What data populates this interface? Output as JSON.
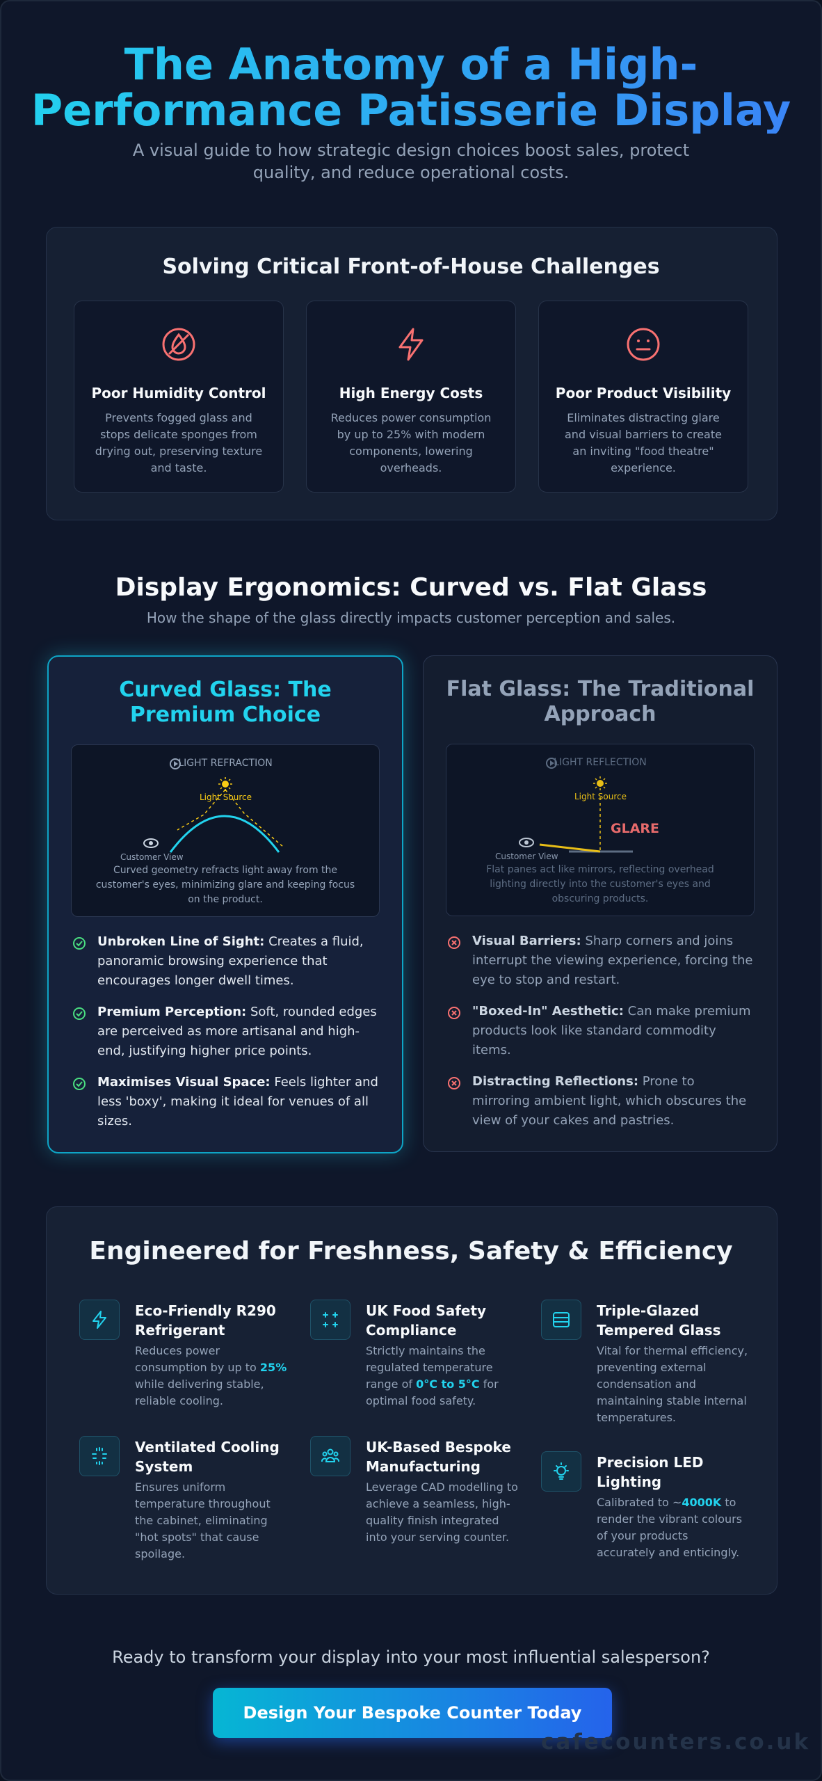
{
  "hero": {
    "title_line1": "The Anatomy of a High-",
    "title_line2": "Performance Patisserie Display",
    "subtitle_line1": "A visual guide to how strategic design choices boost sales, protect",
    "subtitle_line2": "quality, and reduce operational costs."
  },
  "challenges": {
    "title": "Solving Critical Front-of-House Challenges",
    "cards": [
      {
        "icon": "droplet-off-icon",
        "title": "Poor Humidity Control",
        "desc": "Prevents fogged glass and stops delicate sponges from drying out, preserving texture and taste."
      },
      {
        "icon": "lightning-bolt-icon",
        "title": "High Energy Costs",
        "desc": "Reduces power consumption by up to 25% with modern components, lowering overheads."
      },
      {
        "icon": "neutral-face-icon",
        "title": "Poor Product Visibility",
        "desc": "Eliminates distracting glare and visual barriers to create an inviting \"food theatre\" experience."
      }
    ]
  },
  "ergonomics": {
    "title": "Display Ergonomics: Curved vs. Flat Glass",
    "subtitle": "How the shape of the glass directly impacts customer perception and sales.",
    "curved": {
      "title_line1": "Curved Glass: The",
      "title_line2": "Premium Choice",
      "diagram_label": "LIGHT REFRACTION",
      "light_source": "Light Source",
      "customer_view": "Customer View",
      "caption": "Curved geometry refracts light away from the customer's eyes, minimizing glare and keeping focus on the product.",
      "bullets": [
        {
          "bold": "Unbroken Line of Sight:",
          "text": " Creates a fluid, panoramic browsing experience that encourages longer dwell times."
        },
        {
          "bold": "Premium Perception:",
          "text": " Soft, rounded edges are perceived as more artisanal and high-end, justifying higher price points."
        },
        {
          "bold": "Maximises Visual Space:",
          "text": " Feels lighter and less 'boxy', making it ideal for venues of all sizes."
        }
      ]
    },
    "flat": {
      "title_line1": "Flat Glass: The Traditional",
      "title_line2": "Approach",
      "diagram_label": "LIGHT REFLECTION",
      "light_source": "Light Source",
      "customer_view": "Customer View",
      "glare": "GLARE",
      "caption": "Flat panes act like mirrors, reflecting overhead lighting directly into the customer's eyes and obscuring products.",
      "bullets": [
        {
          "bold": "Visual Barriers:",
          "text": " Sharp corners and joins interrupt the viewing experience, forcing the eye to stop and restart."
        },
        {
          "bold": "\"Boxed-In\" Aesthetic:",
          "text": " Can make premium products look like standard commodity items."
        },
        {
          "bold": "Distracting Reflections:",
          "text": " Prone to mirroring ambient light, which obscures the view of your cakes and pastries."
        }
      ]
    }
  },
  "engineered": {
    "title": "Engineered for Freshness, Safety & Efficiency",
    "features": [
      {
        "icon": "lightning-bolt-icon",
        "title_line1": "Eco-Friendly R290",
        "title_line2": "Refrigerant",
        "desc_before": "Reduces power consumption by up to ",
        "highlight": "25%",
        "desc_after": " while delivering stable, reliable cooling."
      },
      {
        "icon": "sparkle-grid-icon",
        "title_line1": "UK Food Safety",
        "title_line2": "Compliance",
        "desc_before": "Strictly maintains the regulated temperature range of ",
        "highlight": "0°C to 5°C",
        "desc_after": " for optimal food safety."
      },
      {
        "icon": "glass-layers-icon",
        "title_line1": "Triple-Glazed",
        "title_line2": "Tempered Glass",
        "desc_before": "Vital for thermal efficiency, preventing external condensation and maintaining stable internal temperatures.",
        "highlight": "",
        "desc_after": ""
      },
      {
        "icon": "airflow-icon",
        "title_line1": "Ventilated Cooling",
        "title_line2": "System",
        "desc_before": "Ensures uniform temperature throughout the cabinet, eliminating \"hot spots\" that cause spoilage.",
        "highlight": "",
        "desc_after": ""
      },
      {
        "icon": "team-icon",
        "title_line1": "UK-Based Bespoke",
        "title_line2": "Manufacturing",
        "desc_before": "Leverage CAD modelling to achieve a seamless, high-quality finish integrated into your serving counter.",
        "highlight": "",
        "desc_after": ""
      },
      {
        "icon": "lightbulb-icon",
        "title_line1": "Precision LED",
        "title_line2": "Lighting",
        "desc_before": "Calibrated to ~",
        "highlight": "4000K",
        "desc_after": " to render the vibrant colours of your products accurately and enticingly."
      }
    ]
  },
  "cta": {
    "question": "Ready to transform your display into your most influential salesperson?",
    "button": "Design Your Bespoke Counter Today"
  },
  "watermark": "cafecounters.co.uk",
  "colors": {
    "accent_cyan": "#22d3ee",
    "accent_blue": "#3b82f6",
    "problem_red": "#f87171",
    "check_green": "#4ade80",
    "light_yellow": "#facc15"
  }
}
